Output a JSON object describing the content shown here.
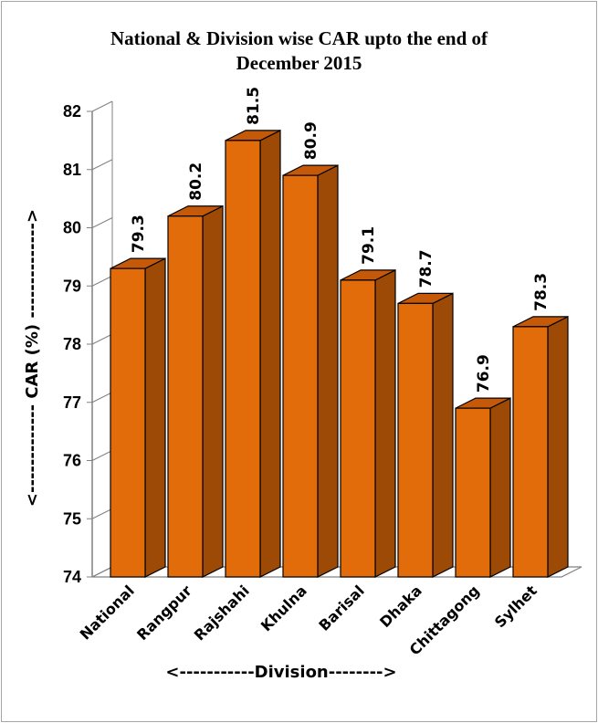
{
  "chart_data": {
    "type": "bar",
    "title_line1": "National & Division wise CAR upto the end of",
    "title_line2": "December 2015",
    "xlabel": "<-----------Division-------->",
    "ylabel": "<------------- CAR (%) -------------->",
    "categories": [
      "National",
      "Rangpur",
      "Rajshahi",
      "Khulna",
      "Barisal",
      "Dhaka",
      "Chittagong",
      "Sylhet"
    ],
    "values": [
      79.3,
      80.2,
      81.5,
      80.9,
      79.1,
      78.7,
      76.9,
      78.3
    ],
    "value_labels": [
      "79.3",
      "80.2",
      "81.5",
      "80.9",
      "79.1",
      "78.7",
      "76.9",
      "78.3"
    ],
    "yticks": [
      74,
      75,
      76,
      77,
      78,
      79,
      80,
      81,
      82
    ],
    "ylim": [
      74,
      82
    ],
    "grid": false,
    "legend": "none",
    "bar_color": "#e36c0a",
    "bar_side_color": "#9c4a06",
    "bar_top_color": "#c4590a"
  }
}
